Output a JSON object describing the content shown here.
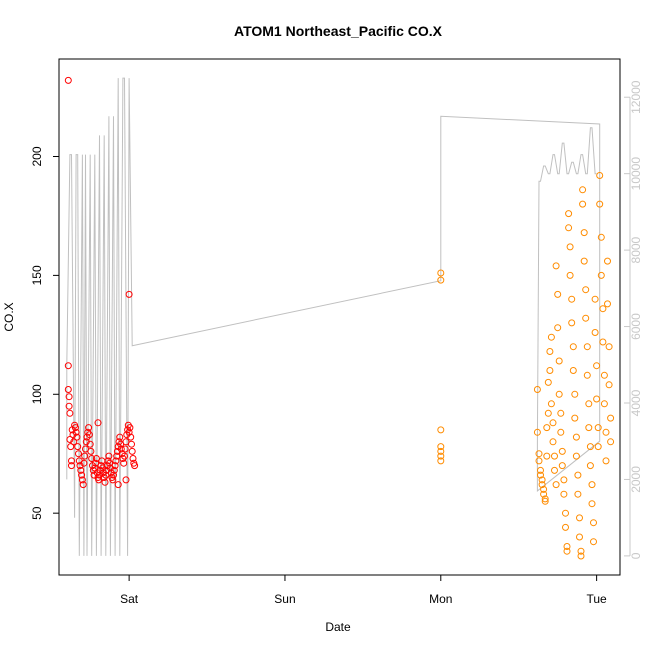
{
  "chart_data": {
    "type": "scatter",
    "title": "ATOM1 Northeast_Pacific CO.X",
    "xlabel": "Date",
    "ylabel": "CO.X",
    "x_ticks": [
      "Sat",
      "Sun",
      "Mon",
      "Tue"
    ],
    "x_range_days": [
      -0.45,
      3.15
    ],
    "ylim": [
      24,
      241
    ],
    "y_ticks": [
      50,
      100,
      150,
      200
    ],
    "y2lim": [
      -500,
      13000
    ],
    "y2_ticks": [
      0,
      2000,
      4000,
      6000,
      8000,
      10000,
      12000
    ],
    "colors": {
      "segment1": "#ff0000",
      "segment2": "#ff8c00",
      "line": "#c0c0c0"
    },
    "series": [
      {
        "color": "#ff0000",
        "points": [
          [
            -0.39,
            232
          ],
          [
            -0.39,
            112
          ],
          [
            -0.39,
            102
          ],
          [
            -0.385,
            99
          ],
          [
            -0.385,
            95
          ],
          [
            -0.38,
            92
          ],
          [
            -0.38,
            81
          ],
          [
            -0.375,
            78
          ],
          [
            -0.37,
            72
          ],
          [
            -0.37,
            70
          ],
          [
            -0.365,
            85
          ],
          [
            -0.36,
            83
          ],
          [
            -0.355,
            80
          ],
          [
            -0.35,
            87
          ],
          [
            -0.345,
            86
          ],
          [
            -0.34,
            84
          ],
          [
            -0.335,
            82
          ],
          [
            -0.33,
            78
          ],
          [
            -0.325,
            75
          ],
          [
            -0.32,
            72
          ],
          [
            -0.315,
            70
          ],
          [
            -0.31,
            68
          ],
          [
            -0.305,
            66
          ],
          [
            -0.3,
            64
          ],
          [
            -0.295,
            62
          ],
          [
            -0.29,
            71
          ],
          [
            -0.285,
            74
          ],
          [
            -0.28,
            77
          ],
          [
            -0.275,
            80
          ],
          [
            -0.27,
            82
          ],
          [
            -0.265,
            84
          ],
          [
            -0.26,
            86
          ],
          [
            -0.255,
            83
          ],
          [
            -0.25,
            79
          ],
          [
            -0.245,
            76
          ],
          [
            -0.24,
            73
          ],
          [
            -0.235,
            70
          ],
          [
            -0.23,
            68
          ],
          [
            -0.225,
            66
          ],
          [
            -0.22,
            69
          ],
          [
            -0.215,
            71
          ],
          [
            -0.21,
            73
          ],
          [
            -0.205,
            67
          ],
          [
            -0.2,
            65
          ],
          [
            -0.195,
            64
          ],
          [
            -0.19,
            66
          ],
          [
            -0.185,
            68
          ],
          [
            -0.18,
            70
          ],
          [
            -0.175,
            72
          ],
          [
            -0.17,
            69
          ],
          [
            -0.165,
            67
          ],
          [
            -0.16,
            65
          ],
          [
            -0.155,
            63
          ],
          [
            -0.15,
            66
          ],
          [
            -0.145,
            68
          ],
          [
            -0.14,
            70
          ],
          [
            -0.135,
            72
          ],
          [
            -0.13,
            74
          ],
          [
            -0.125,
            71
          ],
          [
            -0.12,
            69
          ],
          [
            -0.115,
            67
          ],
          [
            -0.11,
            65
          ],
          [
            -0.105,
            64
          ],
          [
            -0.1,
            66
          ],
          [
            -0.095,
            68
          ],
          [
            -0.09,
            70
          ],
          [
            -0.085,
            72
          ],
          [
            -0.08,
            74
          ],
          [
            -0.075,
            76
          ],
          [
            -0.07,
            78
          ],
          [
            -0.065,
            80
          ],
          [
            -0.06,
            82
          ],
          [
            -0.055,
            79
          ],
          [
            -0.05,
            77
          ],
          [
            -0.045,
            75
          ],
          [
            -0.04,
            73
          ],
          [
            -0.035,
            71
          ],
          [
            -0.03,
            74
          ],
          [
            -0.025,
            77
          ],
          [
            -0.02,
            80
          ],
          [
            -0.015,
            83
          ],
          [
            -0.01,
            85
          ],
          [
            -0.005,
            87
          ],
          [
            0.0,
            84
          ],
          [
            0.005,
            86
          ],
          [
            0.01,
            82
          ],
          [
            0.015,
            79
          ],
          [
            0.02,
            76
          ],
          [
            0.025,
            73
          ],
          [
            0.03,
            71
          ],
          [
            0.035,
            70
          ],
          [
            -0.2,
            88
          ],
          [
            -0.07,
            62
          ],
          [
            -0.02,
            64
          ],
          [
            0.0,
            142
          ]
        ]
      },
      {
        "color": "#ff8c00",
        "points": [
          [
            2.0,
            151
          ],
          [
            2.0,
            148
          ],
          [
            2.0,
            85
          ],
          [
            2.0,
            78
          ],
          [
            2.0,
            76
          ],
          [
            2.0,
            74
          ],
          [
            2.0,
            72
          ],
          [
            2.62,
            102
          ],
          [
            2.62,
            84
          ],
          [
            2.63,
            75
          ],
          [
            2.63,
            72
          ],
          [
            2.64,
            68
          ],
          [
            2.64,
            66
          ],
          [
            2.65,
            64
          ],
          [
            2.65,
            62
          ],
          [
            2.66,
            60
          ],
          [
            2.66,
            58
          ],
          [
            2.67,
            56
          ],
          [
            2.67,
            55
          ],
          [
            2.68,
            74
          ],
          [
            2.68,
            86
          ],
          [
            2.69,
            92
          ],
          [
            2.69,
            105
          ],
          [
            2.7,
            110
          ],
          [
            2.7,
            118
          ],
          [
            2.71,
            124
          ],
          [
            2.71,
            96
          ],
          [
            2.72,
            88
          ],
          [
            2.72,
            80
          ],
          [
            2.73,
            74
          ],
          [
            2.73,
            68
          ],
          [
            2.74,
            62
          ],
          [
            2.74,
            154
          ],
          [
            2.75,
            142
          ],
          [
            2.75,
            128
          ],
          [
            2.76,
            114
          ],
          [
            2.76,
            100
          ],
          [
            2.77,
            92
          ],
          [
            2.77,
            84
          ],
          [
            2.78,
            76
          ],
          [
            2.78,
            70
          ],
          [
            2.79,
            64
          ],
          [
            2.79,
            58
          ],
          [
            2.8,
            50
          ],
          [
            2.8,
            44
          ],
          [
            2.81,
            36
          ],
          [
            2.81,
            34
          ],
          [
            2.82,
            176
          ],
          [
            2.82,
            170
          ],
          [
            2.83,
            162
          ],
          [
            2.83,
            150
          ],
          [
            2.84,
            140
          ],
          [
            2.84,
            130
          ],
          [
            2.85,
            120
          ],
          [
            2.85,
            110
          ],
          [
            2.86,
            100
          ],
          [
            2.86,
            90
          ],
          [
            2.87,
            82
          ],
          [
            2.87,
            74
          ],
          [
            2.88,
            66
          ],
          [
            2.88,
            58
          ],
          [
            2.89,
            48
          ],
          [
            2.89,
            40
          ],
          [
            2.9,
            32
          ],
          [
            2.9,
            34
          ],
          [
            2.91,
            186
          ],
          [
            2.91,
            180
          ],
          [
            2.92,
            168
          ],
          [
            2.92,
            156
          ],
          [
            2.93,
            144
          ],
          [
            2.93,
            132
          ],
          [
            2.94,
            120
          ],
          [
            2.94,
            108
          ],
          [
            2.95,
            96
          ],
          [
            2.95,
            86
          ],
          [
            2.96,
            78
          ],
          [
            2.96,
            70
          ],
          [
            2.97,
            62
          ],
          [
            2.97,
            54
          ],
          [
            2.98,
            46
          ],
          [
            2.98,
            38
          ],
          [
            2.99,
            140
          ],
          [
            2.99,
            126
          ],
          [
            3.0,
            112
          ],
          [
            3.0,
            98
          ],
          [
            3.01,
            86
          ],
          [
            3.01,
            78
          ],
          [
            3.02,
            192
          ],
          [
            3.02,
            180
          ],
          [
            3.03,
            166
          ],
          [
            3.03,
            150
          ],
          [
            3.04,
            136
          ],
          [
            3.04,
            122
          ],
          [
            3.05,
            108
          ],
          [
            3.05,
            96
          ],
          [
            3.06,
            84
          ],
          [
            3.06,
            72
          ],
          [
            3.07,
            156
          ],
          [
            3.07,
            138
          ],
          [
            3.08,
            120
          ],
          [
            3.08,
            104
          ],
          [
            3.09,
            90
          ],
          [
            3.09,
            80
          ]
        ]
      }
    ],
    "line": [
      [
        -0.4,
        -0.4,
        -0.38,
        -0.37,
        -0.35,
        -0.34,
        -0.33,
        -0.32,
        -0.3,
        -0.29,
        -0.28,
        -0.27,
        -0.25,
        -0.24,
        -0.22,
        -0.21,
        -0.19,
        -0.18,
        -0.16,
        -0.15,
        -0.13,
        -0.12,
        -0.1,
        -0.09,
        -0.07,
        -0.06,
        -0.04,
        -0.03,
        -0.01,
        0.0,
        0.02,
        2.0,
        2.0,
        2.0,
        3.02,
        3.02,
        2.62,
        2.62,
        2.63,
        2.64,
        2.66,
        2.67,
        2.69,
        2.7,
        2.72,
        2.73,
        2.75,
        2.76,
        2.78,
        2.79,
        2.81,
        2.82,
        2.84,
        2.85,
        2.87,
        2.88,
        2.9,
        2.91,
        2.93,
        2.94,
        2.96,
        2.97,
        2.99,
        3.0
      ],
      [
        2000,
        5000,
        10500,
        10500,
        1000,
        10500,
        10500,
        0,
        10500,
        0,
        10500,
        0,
        10500,
        0,
        10500,
        0,
        11000,
        0,
        11000,
        0,
        11500,
        0,
        11500,
        0,
        12500,
        0,
        12500,
        12500,
        0,
        12500,
        5500,
        7200,
        11500,
        11500,
        11300,
        3000,
        1700,
        3000,
        9800,
        9800,
        10200,
        10200,
        10000,
        10000,
        10500,
        10500,
        10000,
        10000,
        10800,
        10800,
        10000,
        10000,
        10300,
        10300,
        10000,
        10000,
        10500,
        10500,
        10000,
        10000,
        11200,
        11200,
        10000,
        10000
      ]
    ]
  }
}
